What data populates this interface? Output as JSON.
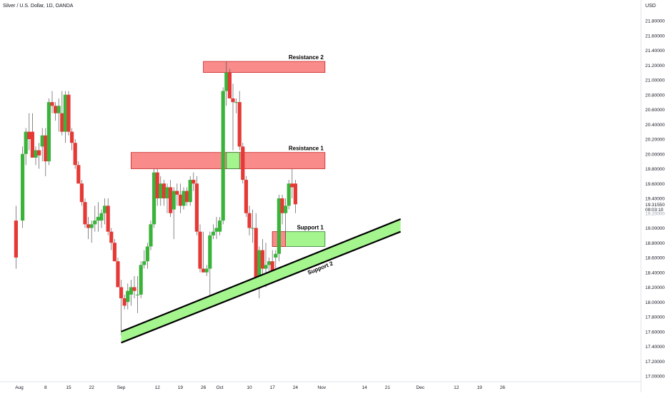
{
  "header": {
    "symbol_title": "Silver / U.S. Dollar, 1D, OANDA"
  },
  "chart_data": {
    "type": "candlestick",
    "currency_label": "USD",
    "ylim": [
      17.0,
      21.8
    ],
    "price_ticks": [
      21.8,
      21.6,
      21.4,
      21.2,
      21.0,
      20.8,
      20.6,
      20.4,
      20.2,
      20.0,
      19.8,
      19.6,
      19.4,
      19.0,
      18.8,
      18.6,
      18.4,
      18.2,
      18.0,
      17.8,
      17.6,
      17.4,
      17.2,
      17.0
    ],
    "price_tick_labels": [
      "21.80000",
      "21.60000",
      "21.40000",
      "21.20000",
      "21.00000",
      "20.80000",
      "20.60000",
      "20.40000",
      "20.20000",
      "20.00000",
      "19.80000",
      "19.60000",
      "19.40000",
      "19.00000",
      "18.80000",
      "18.60000",
      "18.40000",
      "18.20000",
      "18.00000",
      "17.80000",
      "17.60000",
      "17.40000",
      "17.20000",
      "17.00000"
    ],
    "last_price": {
      "price": 19.3155,
      "label": "19.31550",
      "countdown": "09:03:10"
    },
    "faint_tick": {
      "price": 19.2,
      "label": "19.20000"
    },
    "x_ticks": [
      {
        "label": "Aug",
        "day": 0
      },
      {
        "label": "8",
        "day": 8
      },
      {
        "label": "15",
        "day": 15
      },
      {
        "label": "22",
        "day": 22
      },
      {
        "label": "Sep",
        "day": 31
      },
      {
        "label": "12",
        "day": 42
      },
      {
        "label": "19",
        "day": 49
      },
      {
        "label": "26",
        "day": 56
      },
      {
        "label": "Oct",
        "day": 61
      },
      {
        "label": "10",
        "day": 70
      },
      {
        "label": "17",
        "day": 77
      },
      {
        "label": "24",
        "day": 84
      },
      {
        "label": "Nov",
        "day": 92
      },
      {
        "label": "14",
        "day": 105
      },
      {
        "label": "21",
        "day": 112
      },
      {
        "label": "Dec",
        "day": 122
      },
      {
        "label": "12",
        "day": 133
      },
      {
        "label": "19",
        "day": 140
      },
      {
        "label": "26",
        "day": 147
      }
    ],
    "candles": [
      {
        "day": -1,
        "o": 19.1,
        "h": 19.3,
        "l": 18.45,
        "c": 18.6
      },
      {
        "day": 1,
        "o": 19.1,
        "h": 20.1,
        "l": 19.0,
        "c": 20.0
      },
      {
        "day": 2,
        "o": 20.0,
        "h": 20.35,
        "l": 19.85,
        "c": 20.3
      },
      {
        "day": 3,
        "o": 20.3,
        "h": 20.55,
        "l": 20.05,
        "c": 20.2
      },
      {
        "day": 4,
        "o": 20.3,
        "h": 20.55,
        "l": 19.95,
        "c": 19.95
      },
      {
        "day": 5,
        "o": 19.95,
        "h": 20.1,
        "l": 19.85,
        "c": 20.05
      },
      {
        "day": 6,
        "o": 20.05,
        "h": 20.15,
        "l": 19.8,
        "c": 19.98
      },
      {
        "day": 7,
        "o": 20.1,
        "h": 20.35,
        "l": 19.9,
        "c": 20.25
      },
      {
        "day": 8,
        "o": 20.25,
        "h": 20.35,
        "l": 19.7,
        "c": 19.9
      },
      {
        "day": 9,
        "o": 19.9,
        "h": 20.75,
        "l": 19.85,
        "c": 20.7
      },
      {
        "day": 10,
        "o": 20.7,
        "h": 20.85,
        "l": 20.55,
        "c": 20.65
      },
      {
        "day": 11,
        "o": 20.65,
        "h": 20.7,
        "l": 20.45,
        "c": 20.55
      },
      {
        "day": 12,
        "o": 20.55,
        "h": 20.75,
        "l": 20.3,
        "c": 20.65
      },
      {
        "day": 13,
        "o": 20.55,
        "h": 20.85,
        "l": 20.25,
        "c": 20.3
      },
      {
        "day": 14,
        "o": 20.3,
        "h": 20.85,
        "l": 20.15,
        "c": 20.8
      },
      {
        "day": 15,
        "o": 20.8,
        "h": 20.85,
        "l": 20.25,
        "c": 20.3
      },
      {
        "day": 16,
        "o": 20.3,
        "h": 20.35,
        "l": 20.05,
        "c": 20.15
      },
      {
        "day": 17,
        "o": 20.15,
        "h": 20.2,
        "l": 19.8,
        "c": 19.85
      },
      {
        "day": 18,
        "o": 19.85,
        "h": 19.9,
        "l": 19.6,
        "c": 19.6
      },
      {
        "day": 19,
        "o": 19.6,
        "h": 19.65,
        "l": 19.3,
        "c": 19.35
      },
      {
        "day": 20,
        "o": 19.35,
        "h": 19.4,
        "l": 19.0,
        "c": 19.05
      },
      {
        "day": 21,
        "o": 19.05,
        "h": 19.15,
        "l": 18.85,
        "c": 19.0
      },
      {
        "day": 22,
        "o": 19.0,
        "h": 19.1,
        "l": 18.8,
        "c": 19.05
      },
      {
        "day": 23,
        "o": 19.05,
        "h": 19.3,
        "l": 18.95,
        "c": 19.1
      },
      {
        "day": 24,
        "o": 19.1,
        "h": 19.35,
        "l": 18.95,
        "c": 19.15
      },
      {
        "day": 25,
        "o": 19.1,
        "h": 19.25,
        "l": 19.0,
        "c": 19.2
      },
      {
        "day": 26,
        "o": 19.2,
        "h": 19.4,
        "l": 19.05,
        "c": 19.3
      },
      {
        "day": 27,
        "o": 19.3,
        "h": 19.4,
        "l": 18.9,
        "c": 18.95
      },
      {
        "day": 28,
        "o": 18.95,
        "h": 19.0,
        "l": 18.7,
        "c": 18.8
      },
      {
        "day": 29,
        "o": 18.8,
        "h": 18.85,
        "l": 18.55,
        "c": 18.55
      },
      {
        "day": 30,
        "o": 18.55,
        "h": 18.6,
        "l": 18.2,
        "c": 18.2
      },
      {
        "day": 31,
        "o": 18.2,
        "h": 18.3,
        "l": 17.55,
        "c": 18.05
      },
      {
        "day": 32,
        "o": 18.05,
        "h": 18.1,
        "l": 17.9,
        "c": 17.95
      },
      {
        "day": 33,
        "o": 18.0,
        "h": 18.25,
        "l": 17.9,
        "c": 18.15
      },
      {
        "day": 34,
        "o": 18.1,
        "h": 18.3,
        "l": 17.95,
        "c": 18.2
      },
      {
        "day": 35,
        "o": 18.2,
        "h": 18.35,
        "l": 18.05,
        "c": 18.15
      },
      {
        "day": 36,
        "o": 18.1,
        "h": 18.35,
        "l": 17.85,
        "c": 18.1
      },
      {
        "day": 37,
        "o": 18.1,
        "h": 18.55,
        "l": 18.05,
        "c": 18.5
      },
      {
        "day": 38,
        "o": 18.5,
        "h": 18.7,
        "l": 18.45,
        "c": 18.55
      },
      {
        "day": 39,
        "o": 18.55,
        "h": 18.8,
        "l": 18.45,
        "c": 18.75
      },
      {
        "day": 40,
        "o": 18.75,
        "h": 19.1,
        "l": 18.7,
        "c": 19.05
      },
      {
        "day": 41,
        "o": 19.05,
        "h": 19.8,
        "l": 19.0,
        "c": 19.75
      },
      {
        "day": 42,
        "o": 19.75,
        "h": 19.8,
        "l": 19.3,
        "c": 19.4
      },
      {
        "day": 43,
        "o": 19.4,
        "h": 19.7,
        "l": 19.3,
        "c": 19.6
      },
      {
        "day": 44,
        "o": 19.6,
        "h": 19.65,
        "l": 19.3,
        "c": 19.4
      },
      {
        "day": 45,
        "o": 19.4,
        "h": 19.6,
        "l": 19.2,
        "c": 19.55
      },
      {
        "day": 46,
        "o": 19.55,
        "h": 19.65,
        "l": 19.15,
        "c": 19.2
      },
      {
        "day": 47,
        "o": 19.25,
        "h": 19.55,
        "l": 18.85,
        "c": 19.5
      },
      {
        "day": 48,
        "o": 19.5,
        "h": 19.6,
        "l": 19.3,
        "c": 19.45
      },
      {
        "day": 49,
        "o": 19.45,
        "h": 19.6,
        "l": 19.2,
        "c": 19.3
      },
      {
        "day": 50,
        "o": 19.3,
        "h": 19.55,
        "l": 19.25,
        "c": 19.5
      },
      {
        "day": 51,
        "o": 19.5,
        "h": 19.55,
        "l": 19.3,
        "c": 19.35
      },
      {
        "day": 52,
        "o": 19.35,
        "h": 19.7,
        "l": 19.3,
        "c": 19.65
      },
      {
        "day": 53,
        "o": 19.65,
        "h": 19.75,
        "l": 19.5,
        "c": 19.6
      },
      {
        "day": 54,
        "o": 19.6,
        "h": 19.7,
        "l": 18.9,
        "c": 18.95
      },
      {
        "day": 55,
        "o": 18.95,
        "h": 19.05,
        "l": 18.4,
        "c": 18.45
      },
      {
        "day": 56,
        "o": 18.45,
        "h": 18.95,
        "l": 18.4,
        "c": 18.4
      },
      {
        "day": 57,
        "o": 18.4,
        "h": 18.5,
        "l": 18.35,
        "c": 18.45
      },
      {
        "day": 58,
        "o": 18.45,
        "h": 18.95,
        "l": 18.0,
        "c": 18.9
      },
      {
        "day": 59,
        "o": 18.9,
        "h": 19.05,
        "l": 18.85,
        "c": 18.95
      },
      {
        "day": 60,
        "o": 18.95,
        "h": 19.15,
        "l": 18.85,
        "c": 19.0
      },
      {
        "day": 61,
        "o": 18.95,
        "h": 19.15,
        "l": 18.9,
        "c": 19.1
      },
      {
        "day": 62,
        "o": 19.1,
        "h": 20.9,
        "l": 19.05,
        "c": 20.85
      },
      {
        "day": 63,
        "o": 20.85,
        "h": 21.25,
        "l": 20.65,
        "c": 21.1
      },
      {
        "day": 64,
        "o": 21.1,
        "h": 21.15,
        "l": 20.75,
        "c": 20.75
      },
      {
        "day": 65,
        "o": 20.75,
        "h": 20.95,
        "l": 20.05,
        "c": 20.7
      },
      {
        "day": 66,
        "o": 20.7,
        "h": 20.75,
        "l": 20.55,
        "c": 20.7
      },
      {
        "day": 67,
        "o": 20.7,
        "h": 20.85,
        "l": 20.05,
        "c": 20.1
      },
      {
        "day": 68,
        "o": 20.1,
        "h": 20.15,
        "l": 19.6,
        "c": 19.65
      },
      {
        "day": 69,
        "o": 19.65,
        "h": 19.7,
        "l": 19.15,
        "c": 19.2
      },
      {
        "day": 70,
        "o": 19.2,
        "h": 19.3,
        "l": 18.9,
        "c": 19.0
      },
      {
        "day": 71,
        "o": 19.0,
        "h": 19.25,
        "l": 18.8,
        "c": 19.0
      },
      {
        "day": 72,
        "o": 19.0,
        "h": 19.2,
        "l": 18.3,
        "c": 18.3
      },
      {
        "day": 73,
        "o": 18.3,
        "h": 18.75,
        "l": 18.05,
        "c": 18.7
      },
      {
        "day": 74,
        "o": 18.7,
        "h": 18.85,
        "l": 18.3,
        "c": 18.45
      },
      {
        "day": 75,
        "o": 18.45,
        "h": 18.8,
        "l": 18.2,
        "c": 18.5
      },
      {
        "day": 76,
        "o": 18.5,
        "h": 18.6,
        "l": 18.4,
        "c": 18.55
      },
      {
        "day": 77,
        "o": 18.55,
        "h": 18.7,
        "l": 18.25,
        "c": 18.4
      },
      {
        "day": 78,
        "o": 18.6,
        "h": 18.7,
        "l": 18.35,
        "c": 18.65
      },
      {
        "day": 79,
        "o": 18.65,
        "h": 19.45,
        "l": 18.55,
        "c": 19.4
      },
      {
        "day": 80,
        "o": 19.4,
        "h": 19.45,
        "l": 19.05,
        "c": 19.2
      },
      {
        "day": 81,
        "o": 19.2,
        "h": 19.4,
        "l": 18.85,
        "c": 19.3
      },
      {
        "day": 82,
        "o": 19.3,
        "h": 19.65,
        "l": 19.25,
        "c": 19.6
      },
      {
        "day": 83,
        "o": 19.6,
        "h": 19.8,
        "l": 19.4,
        "c": 19.55
      },
      {
        "day": 84,
        "o": 19.6,
        "h": 19.65,
        "l": 19.2,
        "c": 19.32
      }
    ],
    "zones": [
      {
        "label": "Resistance 2",
        "kind": "resistance",
        "d1": 56,
        "d2": 93,
        "p1": 21.1,
        "p2": 21.25
      },
      {
        "label": "Resistance 1",
        "kind": "resistance",
        "d1": 34,
        "d2": 93,
        "p1": 19.8,
        "p2": 20.02
      },
      {
        "label": "Support 1",
        "kind": "support",
        "d1": 77,
        "d2": 93,
        "p1": 18.75,
        "p2": 18.95
      },
      {
        "label": "",
        "kind": "resistance-flip",
        "d1": 77,
        "d2": 81,
        "p1": 18.75,
        "p2": 18.95
      },
      {
        "label": "",
        "kind": "flip",
        "d1": 63,
        "d2": 67,
        "p1": 19.8,
        "p2": 20.02
      }
    ],
    "trend_channel": {
      "label": "Support 2",
      "d1": 31,
      "d2": 116,
      "p_lower_start": 17.45,
      "p_lower_end": 18.95,
      "p_upper_start": 17.6,
      "p_upper_end": 19.12
    },
    "colors": {
      "up": "#3bb33b",
      "down": "#e53935",
      "resistance_fill": "#f98b8b",
      "resistance_border": "#c62828",
      "support_fill": "#a4f58d",
      "support_border": "#2e7d32",
      "line": "#000000",
      "axis_text": "#131722",
      "last_price_bg": "#e53935"
    }
  }
}
